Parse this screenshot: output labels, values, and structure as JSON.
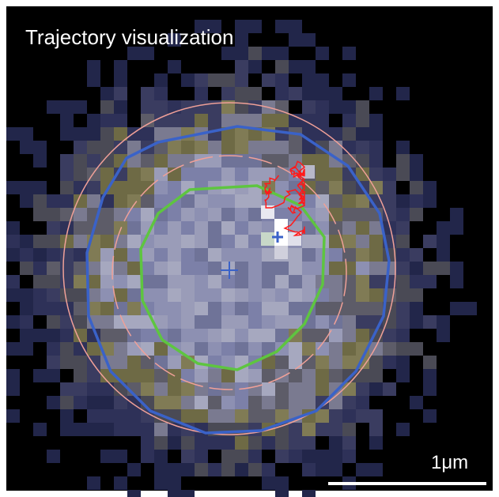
{
  "title": "Trajectory visualization",
  "scale_bar": {
    "label": "1μm"
  }
}
